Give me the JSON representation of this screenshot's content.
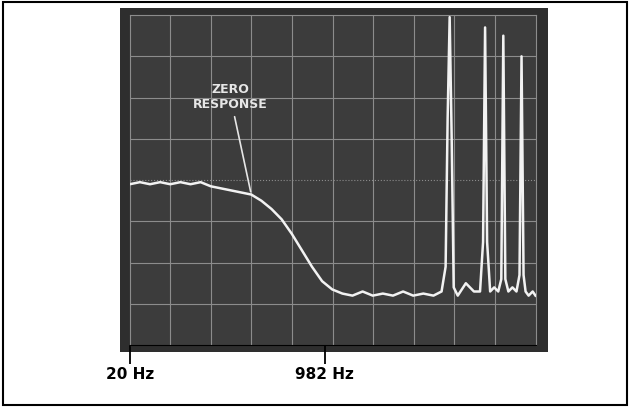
{
  "chart_data": {
    "type": "line",
    "x": [
      20,
      70,
      120,
      170,
      220,
      270,
      320,
      370,
      420,
      470,
      520,
      570,
      620,
      670,
      720,
      770,
      820,
      870,
      920,
      970,
      1020,
      1070,
      1120,
      1170,
      1220,
      1270,
      1320,
      1370,
      1420,
      1470,
      1520,
      1560,
      1580,
      1590,
      1600,
      1610,
      1620,
      1640,
      1680,
      1720,
      1750,
      1765,
      1775,
      1785,
      1800,
      1820,
      1840,
      1855,
      1865,
      1875,
      1890,
      1910,
      1930,
      1945,
      1955,
      1965,
      1975,
      1990,
      2010,
      2024
    ],
    "values": [
      3.9,
      3.95,
      3.9,
      3.95,
      3.9,
      3.95,
      3.9,
      3.95,
      3.85,
      3.8,
      3.75,
      3.7,
      3.65,
      3.5,
      3.3,
      3.05,
      2.7,
      2.3,
      1.9,
      1.55,
      1.35,
      1.25,
      1.2,
      1.3,
      1.2,
      1.25,
      1.2,
      1.3,
      1.2,
      1.25,
      1.2,
      1.3,
      1.9,
      5.5,
      7.95,
      5.0,
      1.4,
      1.2,
      1.5,
      1.3,
      1.3,
      2.5,
      7.7,
      2.5,
      1.3,
      1.4,
      1.3,
      1.6,
      7.5,
      1.6,
      1.3,
      1.4,
      1.3,
      1.7,
      7.0,
      1.7,
      1.3,
      1.2,
      1.3,
      1.2
    ],
    "color": "#f2f2f2",
    "xlim": [
      20,
      2024
    ],
    "xticks": [
      {
        "value": 20,
        "label": "20 Hz"
      },
      {
        "value": 982,
        "label": "982 Hz"
      }
    ],
    "ylim": [
      0,
      8
    ],
    "tick_labels": "x",
    "grid": true,
    "annotations": [
      {
        "text": "ZERO\nRESPONSE",
        "x": 620,
        "y": 3.65
      }
    ]
  }
}
